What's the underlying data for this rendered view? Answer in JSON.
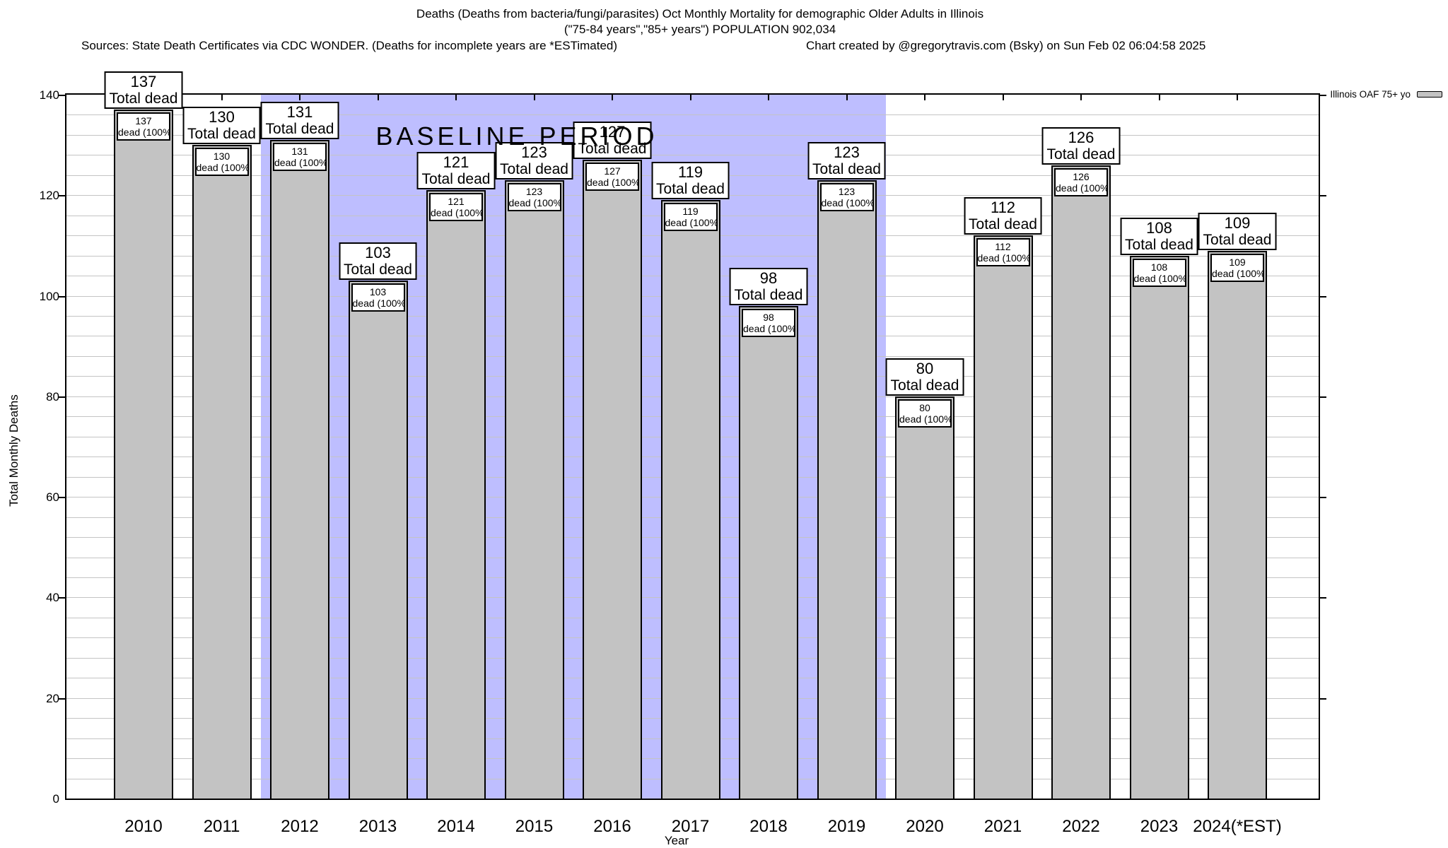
{
  "header": {
    "title_line1": "Deaths (Deaths from bacteria/fungi/parasites) Oct Monthly Mortality for demographic Older Adults in Illinois",
    "title_line2": "(\"75-84 years\",\"85+ years\") POPULATION 902,034",
    "sources": "Sources: State Death Certificates via CDC WONDER. (Deaths for incomplete years are *ESTimated)",
    "credit": "Chart created by @gregorytravis.com (Bsky) on Sun Feb 02 06:04:58 2025"
  },
  "legend": {
    "label": "Illinois OAF 75+ yo",
    "swatch_color": "#c3c3c3"
  },
  "chart_data": {
    "type": "bar",
    "title": "Deaths (Deaths from bacteria/fungi/parasites) Oct Monthly Mortality for demographic Older Adults in Illinois",
    "categories": [
      "2010",
      "2011",
      "2012",
      "2013",
      "2014",
      "2015",
      "2016",
      "2017",
      "2018",
      "2019",
      "2020",
      "2021",
      "2022",
      "2023",
      "2024(*EST)"
    ],
    "series": [
      {
        "name": "Illinois OAF 75+ yo",
        "values": [
          137,
          130,
          131,
          103,
          121,
          123,
          127,
          119,
          98,
          123,
          80,
          112,
          126,
          108,
          109
        ]
      }
    ],
    "bar_top_label_suffix": "Total dead",
    "bar_inner_label_suffix": "dead (100%)",
    "xlabel": "Year",
    "ylabel": "Total Monthly Deaths",
    "ylim": [
      0,
      140
    ],
    "yticks": [
      0,
      20,
      40,
      60,
      80,
      100,
      120,
      140
    ],
    "minor_grid_step": 4,
    "grid": true,
    "legend_position": "top-right",
    "bar_color": "#c3c3c3",
    "grid_color": "#c4c4c4",
    "annotations": {
      "baseline_label": "BASELINE PERIOD",
      "baseline_span_categories": [
        "2012",
        "2019"
      ],
      "baseline_color": "#bebeff"
    }
  }
}
